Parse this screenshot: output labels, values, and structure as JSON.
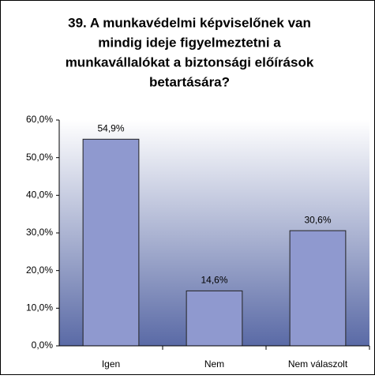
{
  "chart_data": {
    "type": "bar",
    "title": [
      "39. A munkavédelmi képviselőnek van",
      "mindig ideje figyelmeztetni a",
      "munkavállalókat a biztonsági előírások",
      "betartására?"
    ],
    "categories": [
      "Igen",
      "Nem",
      "Nem válaszolt"
    ],
    "values": [
      54.9,
      14.6,
      30.6
    ],
    "value_labels": [
      "54,9%",
      "14,6%",
      "30,6%"
    ],
    "color": "#8f99cf",
    "ylim": [
      0,
      60
    ],
    "yticks": [
      {
        "value": 0,
        "label": "0,0%"
      },
      {
        "value": 10,
        "label": "10,0%"
      },
      {
        "value": 20,
        "label": "20,0%"
      },
      {
        "value": 30,
        "label": "30,0%"
      },
      {
        "value": 40,
        "label": "40,0%"
      },
      {
        "value": 50,
        "label": "50,0%"
      },
      {
        "value": 60,
        "label": "60,0%"
      }
    ]
  }
}
